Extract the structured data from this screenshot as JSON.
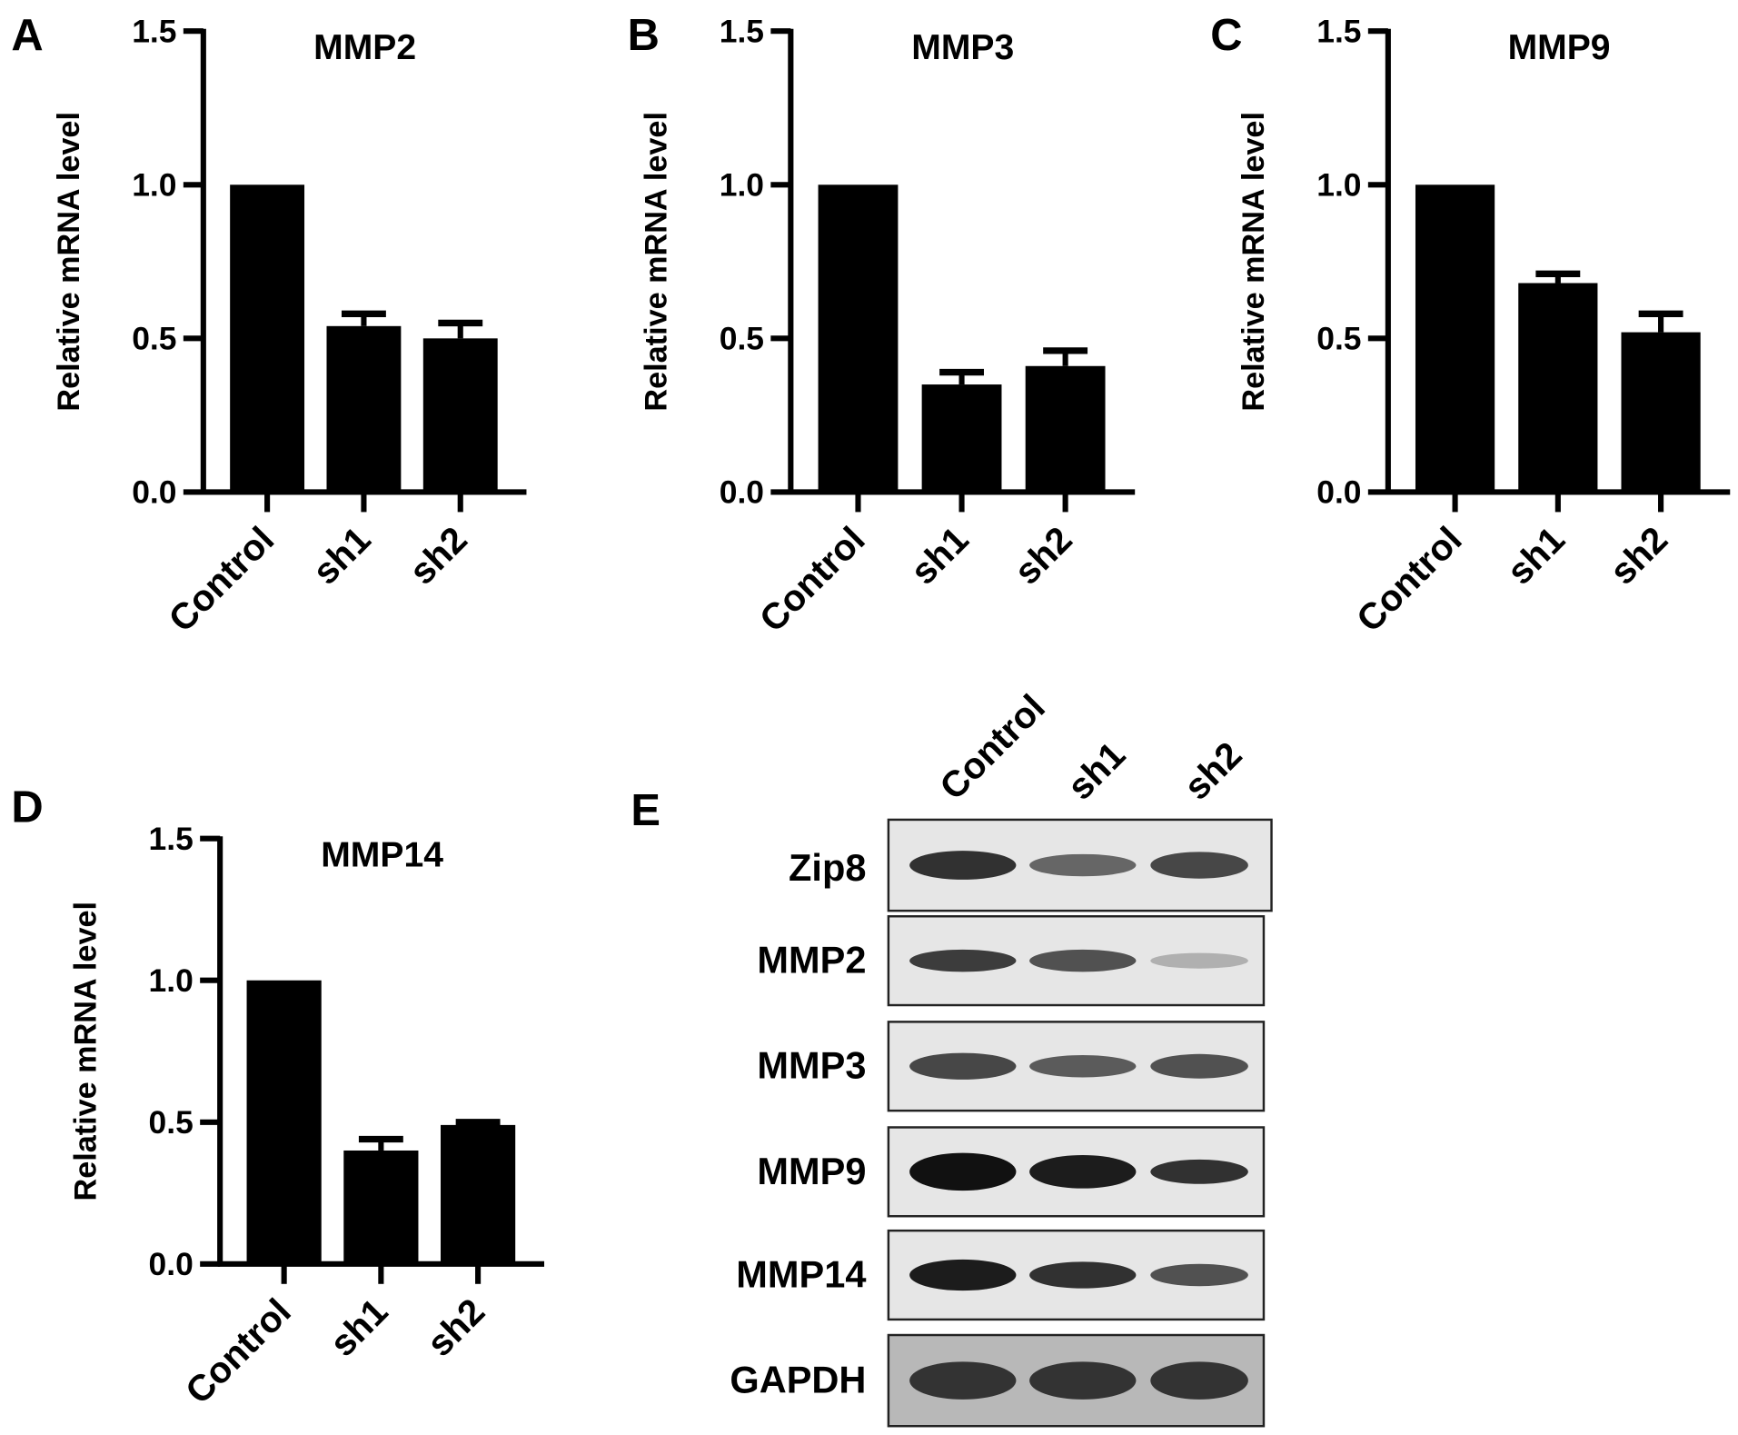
{
  "chart_data": [
    {
      "panel": "A",
      "type": "bar",
      "title": "MMP2",
      "ylabel": "Relative mRNA level",
      "ylim": [
        0,
        1.5
      ],
      "yticks": [
        "0.0",
        "0.5",
        "1.0",
        "1.5"
      ],
      "categories": [
        "Control",
        "sh1",
        "sh2"
      ],
      "values": [
        1.0,
        0.54,
        0.5
      ],
      "errors": [
        0,
        0.04,
        0.05
      ],
      "bar_color": "#000000"
    },
    {
      "panel": "B",
      "type": "bar",
      "title": "MMP3",
      "ylabel": "Relative mRNA level",
      "ylim": [
        0,
        1.5
      ],
      "yticks": [
        "0.0",
        "0.5",
        "1.0",
        "1.5"
      ],
      "categories": [
        "Control",
        "sh1",
        "sh2"
      ],
      "values": [
        1.0,
        0.35,
        0.41
      ],
      "errors": [
        0,
        0.04,
        0.05
      ],
      "bar_color": "#000000"
    },
    {
      "panel": "C",
      "type": "bar",
      "title": "MMP9",
      "ylabel": "Relative mRNA level",
      "ylim": [
        0,
        1.5
      ],
      "yticks": [
        "0.0",
        "0.5",
        "1.0",
        "1.5"
      ],
      "categories": [
        "Control",
        "sh1",
        "sh2"
      ],
      "values": [
        1.0,
        0.68,
        0.52
      ],
      "errors": [
        0,
        0.03,
        0.06
      ],
      "bar_color": "#000000"
    },
    {
      "panel": "D",
      "type": "bar",
      "title": "MMP14",
      "ylabel": "Relative mRNA level",
      "ylim": [
        0,
        1.5
      ],
      "yticks": [
        "0.0",
        "0.5",
        "1.0",
        "1.5"
      ],
      "categories": [
        "Control",
        "sh1",
        "sh2"
      ],
      "values": [
        1.0,
        0.4,
        0.49
      ],
      "errors": [
        0,
        0.04,
        0.01
      ],
      "bar_color": "#000000"
    }
  ],
  "blot": {
    "panel": "E",
    "lanes": [
      "Control",
      "sh1",
      "sh2"
    ],
    "rows": [
      "Zip8",
      "MMP2",
      "MMP3",
      "MMP9",
      "MMP14",
      "GAPDH"
    ]
  }
}
